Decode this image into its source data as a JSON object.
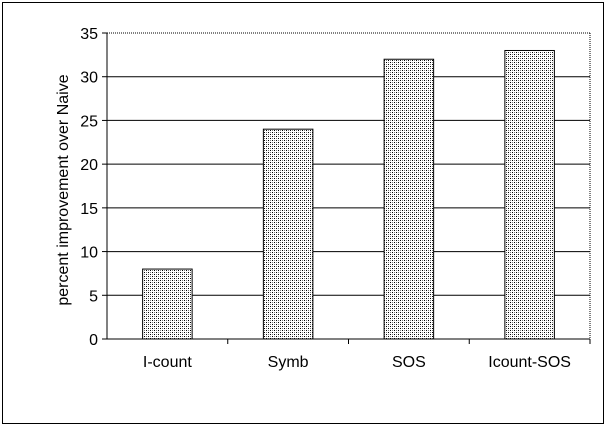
{
  "chart_data": {
    "type": "bar",
    "title": "",
    "xlabel": "",
    "ylabel": "percent improvement over Naive",
    "categories": [
      "I-count",
      "Symb",
      "SOS",
      "Icount-SOS"
    ],
    "values": [
      8,
      24,
      32,
      33
    ],
    "ylim": [
      0,
      35
    ],
    "yticks": [
      0,
      5,
      10,
      15,
      20,
      25,
      30,
      35
    ],
    "grid": true,
    "legend": "none",
    "bar_fill": "stipple"
  }
}
